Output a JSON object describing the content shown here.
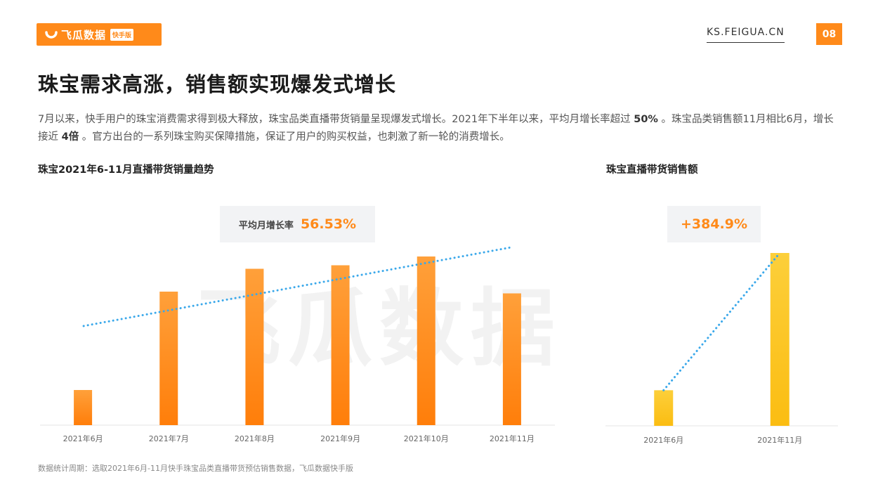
{
  "header": {
    "logo_text": "飞瓜数据",
    "logo_badge": "快手版",
    "site": "KS.FEIGUA.CN",
    "page_number": "08"
  },
  "title": "珠宝需求高涨，销售额实现爆发式增长",
  "description": {
    "part1": "7月以来，快手用户的珠宝消费需求得到极大释放，珠宝品类直播带货销量呈现爆发式增长。2021年下半年以来，平均月增长率超过 ",
    "bold1": "50%",
    "part2": " 。珠宝品类销售额11月相比6月，增长接近 ",
    "bold2": "4倍",
    "part3": " 。官方出台的一系列珠宝购买保障措施，保证了用户的购买权益，也刺激了新一轮的消费增长。"
  },
  "watermark": "飞瓜数据",
  "colors": {
    "accent": "#ff8a1a",
    "bar_orange": "#ff8a1a",
    "bar_yellow": "#fcc31e",
    "trend": "#3aa8ea"
  },
  "chart_data": [
    {
      "type": "bar",
      "title": "珠宝2021年6-11月直播带货销量趋势",
      "categories": [
        "2021年6月",
        "2021年7月",
        "2021年8月",
        "2021年9月",
        "2021年10月",
        "2021年11月"
      ],
      "values": [
        20,
        76,
        89,
        91,
        96,
        75
      ],
      "ylim": [
        0,
        100
      ],
      "trendline": true,
      "callout_label": "平均月增长率",
      "callout_value": "56.53%"
    },
    {
      "type": "bar",
      "title": "珠宝直播带货销售额",
      "categories": [
        "2021年6月",
        "2021年11月"
      ],
      "values": [
        20.6,
        100
      ],
      "ylim": [
        0,
        100
      ],
      "trendline": true,
      "callout_value": "+384.9%"
    }
  ],
  "footnote": "数据统计周期：选取2021年6月-11月快手珠宝品类直播带货预估销售数据，飞瓜数据快手版"
}
